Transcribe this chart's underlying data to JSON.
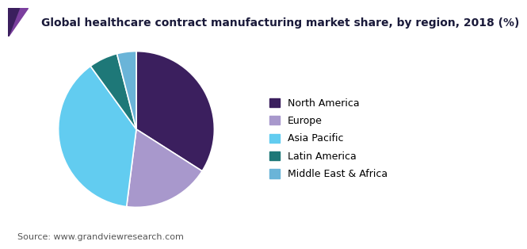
{
  "title": "Global healthcare contract manufacturing market share, by region, 2018 (%)",
  "source": "Source: www.grandviewresearch.com",
  "labels": [
    "North America",
    "Europe",
    "Asia Pacific",
    "Latin America",
    "Middle East & Africa"
  ],
  "values": [
    34,
    18,
    38,
    6,
    4
  ],
  "colors": [
    "#3b1f5e",
    "#a898cc",
    "#62ccf0",
    "#1e7878",
    "#6ab4d8"
  ],
  "startangle": 90,
  "legend_fontsize": 9,
  "title_fontsize": 10,
  "source_fontsize": 8,
  "background_color": "#ffffff",
  "wedge_edge_color": "#ffffff",
  "wedge_linewidth": 1.2,
  "header_color": "#6a3a8a",
  "header_line_color": "#7b4499",
  "title_color": "#1a1a3a"
}
